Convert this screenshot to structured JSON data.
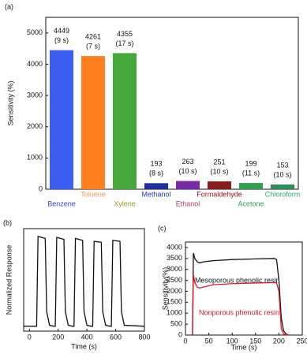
{
  "chart_data": [
    {
      "type": "bar",
      "panel_label": "(a)",
      "ylabel": "Sensitivity (%)",
      "categories": [
        "Benzene",
        "Toluene",
        "Xylene",
        "Methanol",
        "Ethanol",
        "Formaldehyde",
        "Acetone",
        "Chloroform"
      ],
      "values": [
        4449,
        4261,
        4355,
        193,
        263,
        251,
        199,
        153
      ],
      "response_times": [
        "(9 s)",
        "(7 s)",
        "(17 s)",
        "(8 s)",
        "(10 s)",
        "(10 s)",
        "(11 s)",
        "(10 s)"
      ],
      "colors": [
        "#3d5ef2",
        "#ff7f1f",
        "#44a83a",
        "#1f2f9e",
        "#7a2aa6",
        "#8a1c1c",
        "#2f9e4d",
        "#2e8b5c"
      ],
      "label_colors": [
        "#3344cc",
        "#e89a60",
        "#9a9a2e",
        "#2233aa",
        "#b03a6a",
        "#8a1111",
        "#2fa356",
        "#2fa566"
      ],
      "ylim": [
        0,
        5500
      ],
      "yticks": [
        0,
        1000,
        2000,
        3000,
        4000,
        5000
      ]
    },
    {
      "type": "line",
      "panel_label": "(b)",
      "ylabel": "Normalized Response",
      "xlabel": "Time (s)",
      "x": [
        -40,
        40,
        50,
        60,
        110,
        120,
        140,
        170,
        180,
        190,
        240,
        250,
        270,
        300,
        310,
        320,
        370,
        380,
        400,
        430,
        440,
        450,
        500,
        510,
        530,
        560,
        570,
        580,
        630,
        640,
        660,
        800
      ],
      "series": [
        {
          "color": "#111111",
          "values": [
            0.05,
            0.05,
            0.05,
            0.97,
            0.95,
            0.2,
            0.06,
            0.05,
            0.05,
            0.96,
            0.94,
            0.2,
            0.06,
            0.05,
            0.05,
            0.95,
            0.93,
            0.2,
            0.06,
            0.05,
            0.05,
            0.92,
            0.91,
            0.2,
            0.06,
            0.05,
            0.05,
            0.93,
            0.92,
            0.2,
            0.06,
            0.05
          ]
        }
      ],
      "xlim": [
        -40,
        800
      ],
      "xticks": [
        0,
        200,
        400,
        600,
        800
      ],
      "ylim": [
        0,
        1.05
      ]
    },
    {
      "type": "line",
      "panel_label": "(c)",
      "ylabel": "Sensitivity(%)",
      "xlabel": "Time (s)",
      "x": [
        15,
        17,
        20,
        25,
        30,
        40,
        60,
        100,
        150,
        190,
        195,
        200,
        205,
        210,
        215,
        220
      ],
      "series": [
        {
          "name": "Mesoporous phenolic resin",
          "color": "#111111",
          "values": [
            0,
            3750,
            3500,
            3350,
            3300,
            3350,
            3400,
            3450,
            3480,
            3500,
            3450,
            2500,
            800,
            200,
            50,
            20
          ]
        },
        {
          "name": "Nonporous phenolic resin",
          "color": "#e0192a",
          "values": [
            0,
            2750,
            2400,
            2200,
            2150,
            2200,
            2300,
            2350,
            2380,
            2400,
            2380,
            2000,
            300,
            50,
            20,
            10
          ]
        }
      ],
      "xlim": [
        0,
        250
      ],
      "xticks": [
        0,
        50,
        100,
        150,
        200,
        250
      ],
      "ylim": [
        0,
        4250
      ],
      "yticks": [
        0,
        500,
        1000,
        1500,
        2000,
        2500,
        3000,
        3500,
        4000
      ]
    }
  ]
}
